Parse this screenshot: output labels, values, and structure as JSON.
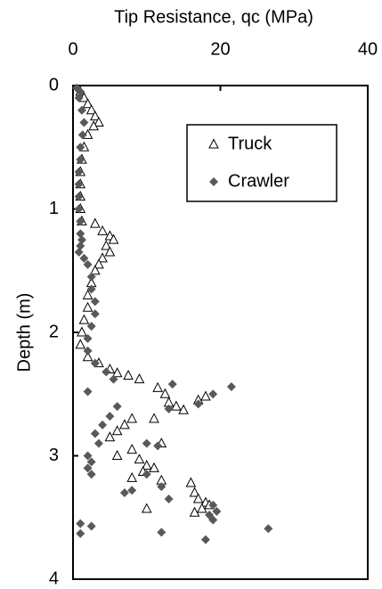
{
  "chart_data": {
    "type": "scatter",
    "x_label": "Tip Resistance, qc (MPa)",
    "y_label": "Depth (m)",
    "xlim": [
      0,
      40
    ],
    "xticks": [
      0,
      20,
      40
    ],
    "ylim": [
      0,
      4
    ],
    "yticks": [
      0,
      1,
      2,
      3,
      4
    ],
    "y_inverted": true,
    "x_axis_position": "top",
    "legend": "upper right",
    "series": [
      {
        "name": "Truck",
        "marker": "triangle",
        "color": "#000000",
        "x": [
          1,
          1.5,
          2,
          2.5,
          3,
          3.5,
          2.8,
          2,
          1.5,
          1.2,
          1,
          1,
          1,
          1,
          1.2,
          3,
          4,
          5,
          5.5,
          4.5,
          5,
          4,
          3.5,
          3,
          2.5,
          2,
          2,
          1.5,
          1.2,
          1,
          2,
          3.5,
          5,
          6,
          7.5,
          9,
          11.5,
          12.5,
          14,
          15,
          17,
          18,
          13,
          11,
          8,
          7,
          6,
          5,
          12,
          8,
          6,
          9,
          10,
          11,
          9.5,
          8,
          12,
          16,
          16.5,
          17,
          18,
          17.5,
          16.5,
          10,
          18.5
        ],
        "values": [
          0.05,
          0.1,
          0.15,
          0.2,
          0.25,
          0.3,
          0.33,
          0.4,
          0.5,
          0.6,
          0.7,
          0.8,
          0.9,
          1.0,
          1.1,
          1.12,
          1.18,
          1.22,
          1.25,
          1.3,
          1.35,
          1.4,
          1.45,
          1.5,
          1.6,
          1.7,
          1.8,
          1.9,
          2.0,
          2.1,
          2.2,
          2.25,
          2.3,
          2.33,
          2.35,
          2.38,
          2.45,
          2.5,
          2.6,
          2.63,
          2.55,
          2.52,
          2.57,
          2.7,
          2.7,
          2.75,
          2.8,
          2.85,
          2.9,
          2.95,
          3.0,
          3.03,
          3.08,
          3.1,
          3.13,
          3.18,
          3.2,
          3.22,
          3.3,
          3.35,
          3.38,
          3.43,
          3.46,
          3.43,
          3.4
        ]
      },
      {
        "name": "Crawler",
        "marker": "diamond",
        "color": "#595959",
        "x": [
          0.5,
          1,
          0.8,
          1.2,
          1.5,
          1.3,
          1,
          1,
          0.8,
          0.8,
          0.8,
          0.8,
          1,
          1,
          1.2,
          1,
          0.8,
          1.5,
          2,
          2.5,
          2.5,
          3,
          3,
          2.5,
          2,
          2,
          3,
          4.5,
          5.5,
          2,
          13.5,
          21.5,
          19,
          17,
          13,
          6,
          5,
          4,
          3,
          3.5,
          10,
          11.5,
          2,
          2.5,
          2,
          2.5,
          10,
          12,
          8,
          7,
          13,
          19,
          19.5,
          18.5,
          19,
          1,
          2.5,
          26.5,
          12,
          1,
          18
        ],
        "values": [
          0.02,
          0.05,
          0.1,
          0.2,
          0.3,
          0.4,
          0.5,
          0.6,
          0.7,
          0.8,
          0.9,
          1.0,
          1.1,
          1.2,
          1.25,
          1.3,
          1.35,
          1.4,
          1.45,
          1.55,
          1.65,
          1.75,
          1.85,
          1.95,
          2.05,
          2.15,
          2.25,
          2.32,
          2.38,
          2.48,
          2.42,
          2.44,
          2.5,
          2.58,
          2.62,
          2.6,
          2.68,
          2.75,
          2.82,
          2.9,
          2.9,
          2.92,
          3.0,
          3.05,
          3.1,
          3.15,
          3.15,
          3.25,
          3.28,
          3.3,
          3.35,
          3.4,
          3.45,
          3.48,
          3.52,
          3.55,
          3.57,
          3.59,
          3.62,
          3.63,
          3.68
        ]
      }
    ]
  }
}
